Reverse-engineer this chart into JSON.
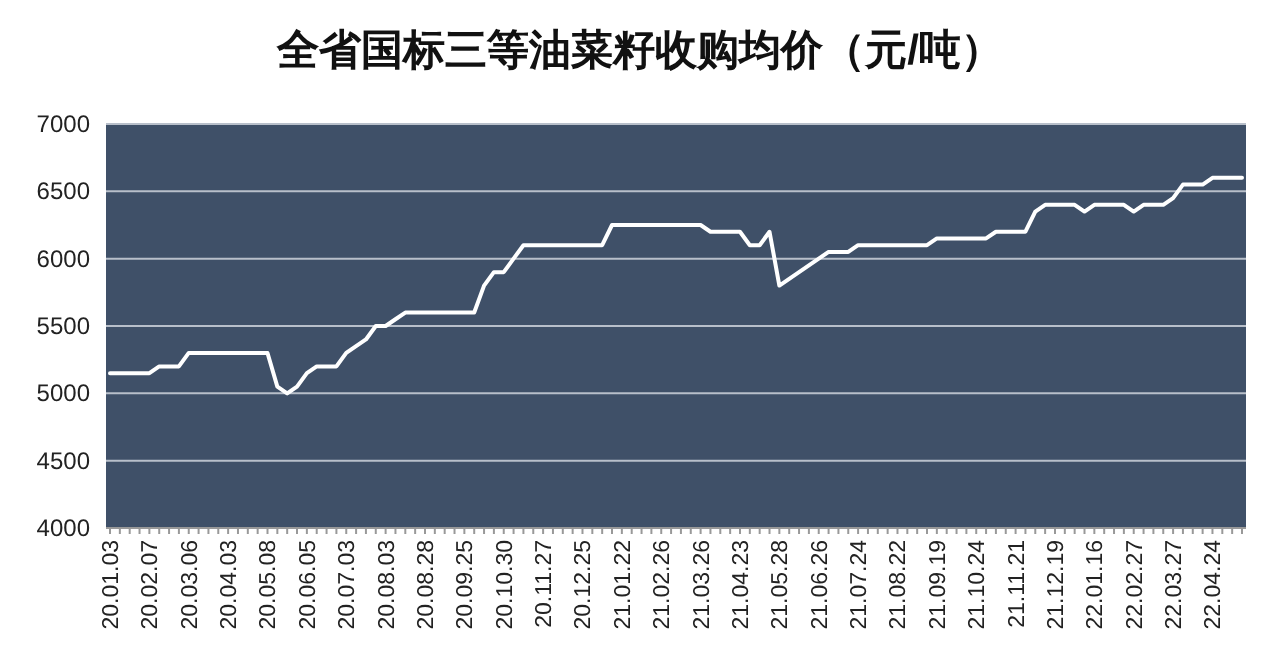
{
  "chart_data": {
    "type": "line",
    "title": "全省国标三等油菜籽收购均价（元/吨）",
    "categories": [
      "20.01.03",
      null,
      null,
      null,
      "20.02.07",
      null,
      null,
      null,
      "20.03.06",
      null,
      null,
      null,
      "20.04.03",
      null,
      null,
      null,
      "20.05.08",
      null,
      null,
      null,
      "20.06.05",
      null,
      null,
      null,
      "20.07.03",
      null,
      null,
      null,
      "20.08.03",
      null,
      null,
      null,
      "20.08.28",
      null,
      null,
      null,
      "20.09.25",
      null,
      null,
      null,
      "20.10.30",
      null,
      null,
      null,
      "20.11.27",
      null,
      null,
      null,
      "20.12.25",
      null,
      null,
      null,
      "21.01.22",
      null,
      null,
      null,
      "21.02.26",
      null,
      null,
      null,
      "21.03.26",
      null,
      null,
      null,
      "21.04.23",
      null,
      null,
      null,
      "21.05.28",
      null,
      null,
      null,
      "21.06.26",
      null,
      null,
      null,
      "21.07.24",
      null,
      null,
      null,
      "21.08.22",
      null,
      null,
      null,
      "21.09.19",
      null,
      null,
      null,
      "21.10.24",
      null,
      null,
      null,
      "21.11.21",
      null,
      null,
      null,
      "21.12.19",
      null,
      null,
      null,
      "22.01.16",
      null,
      null,
      null,
      "22.02.27",
      null,
      null,
      null,
      "22.03.27",
      null,
      null,
      null,
      "22.04.24",
      null,
      null,
      null
    ],
    "series": [
      {
        "color": "#ffffff",
        "values": [
          5150,
          5150,
          5150,
          5150,
          5150,
          5200,
          5200,
          5200,
          5300,
          5300,
          5300,
          5300,
          5300,
          5300,
          5300,
          5300,
          5300,
          5050,
          5000,
          5050,
          5150,
          5200,
          5200,
          5200,
          5300,
          5350,
          5400,
          5500,
          5500,
          5550,
          5600,
          5600,
          5600,
          5600,
          5600,
          5600,
          5600,
          5600,
          5800,
          5900,
          5900,
          6000,
          6100,
          6100,
          6100,
          6100,
          6100,
          6100,
          6100,
          6100,
          6100,
          6250,
          6250,
          6250,
          6250,
          6250,
          6250,
          6250,
          6250,
          6250,
          6250,
          6200,
          6200,
          6200,
          6200,
          6100,
          6100,
          6200,
          5800,
          5850,
          5900,
          5950,
          6000,
          6050,
          6050,
          6050,
          6100,
          6100,
          6100,
          6100,
          6100,
          6100,
          6100,
          6100,
          6150,
          6150,
          6150,
          6150,
          6150,
          6150,
          6200,
          6200,
          6200,
          6200,
          6350,
          6400,
          6400,
          6400,
          6400,
          6350,
          6400,
          6400,
          6400,
          6400,
          6350,
          6400,
          6400,
          6400,
          6450,
          6550,
          6550,
          6550,
          6600,
          6600,
          6600,
          6600
        ]
      }
    ],
    "ylim": [
      4000,
      7000
    ],
    "yticks": [
      4000,
      4500,
      5000,
      5500,
      6000,
      6500,
      7000
    ],
    "grid": "y"
  }
}
